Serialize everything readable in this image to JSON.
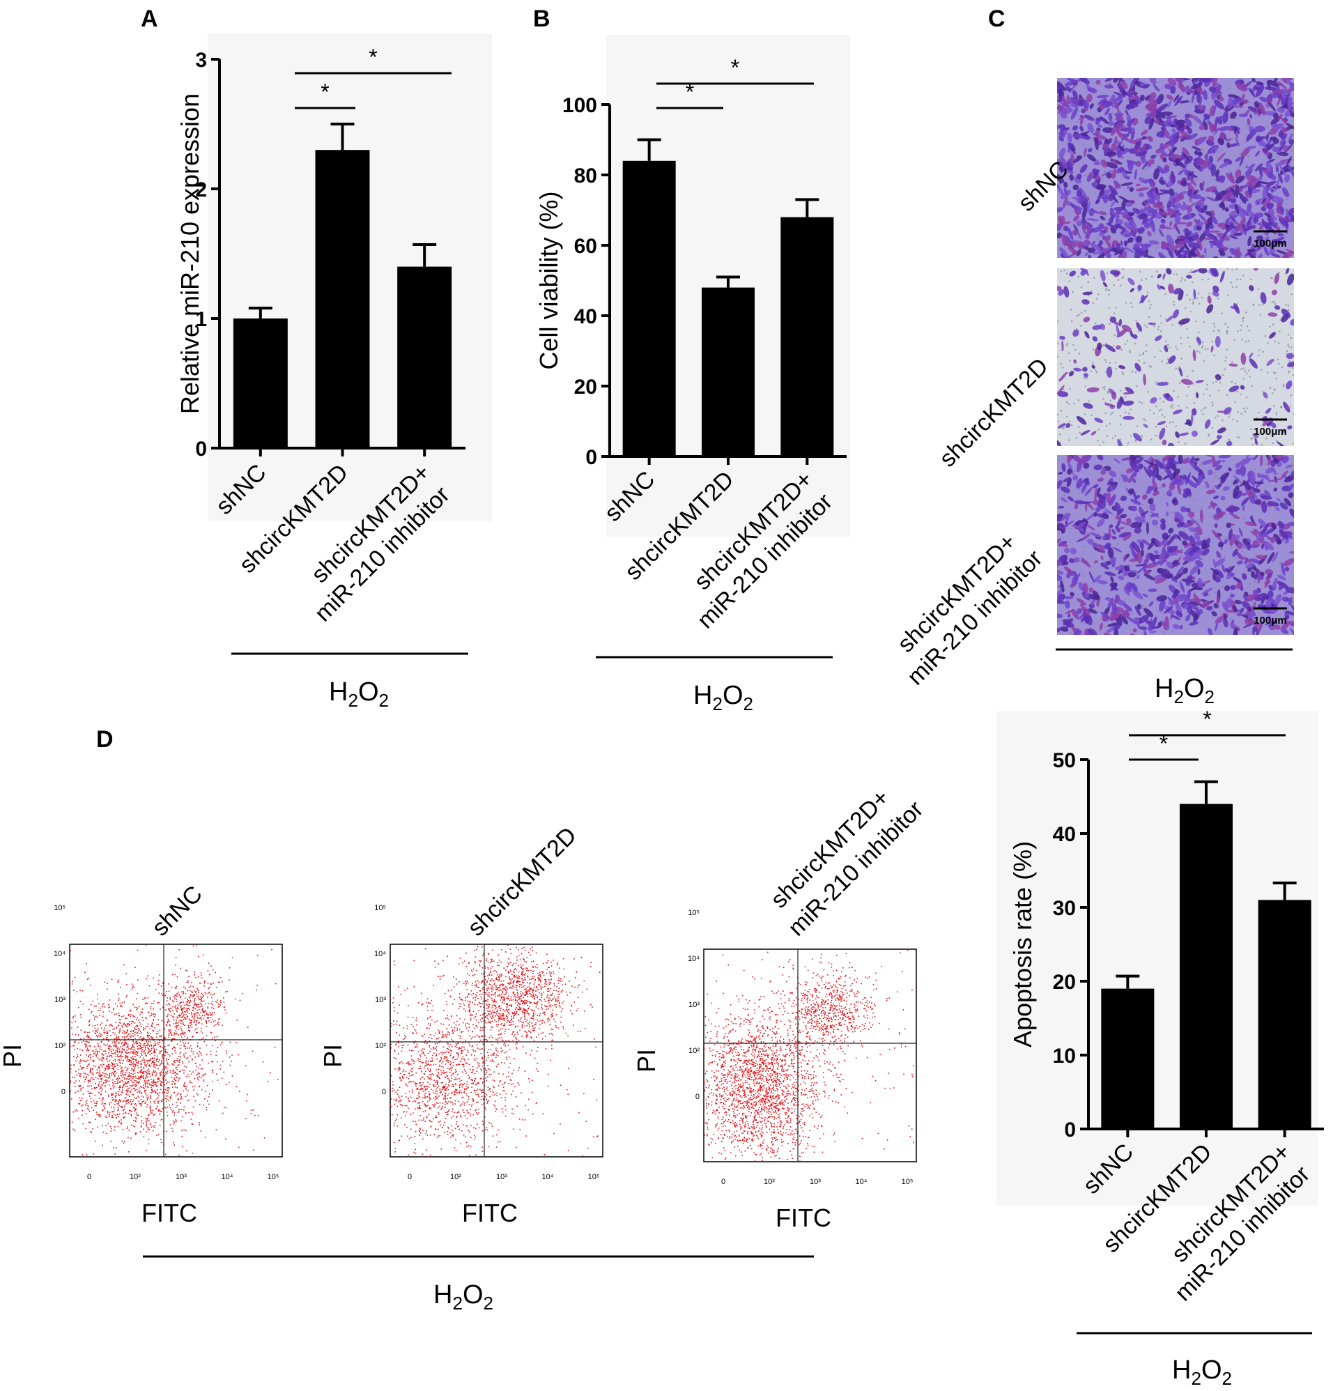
{
  "common": {
    "treatment": "H2O2",
    "treatment_main": "H",
    "treatment_sub": "2",
    "treatment_main2": "O",
    "treatment_sub2": "2"
  },
  "groups": {
    "g1": "shNC",
    "g2": "shcircKMT2D",
    "g3_line1": "shcircKMT2D+",
    "g3_line2": "miR-210 inhibitor"
  },
  "significance_mark": "*",
  "chart_data": [
    {
      "panel": "A",
      "type": "bar",
      "ylabel": "Relative miR-210 expression",
      "ylim": [
        0,
        3
      ],
      "yticks": [
        "0",
        "1",
        "2",
        "3"
      ],
      "categories": [
        "shNC",
        "shcircKMT2D",
        "shcircKMT2D+ miR-210 inhibitor"
      ],
      "values": [
        1.0,
        2.3,
        1.4
      ],
      "errors": [
        0.08,
        0.2,
        0.17
      ],
      "significance": [
        [
          "shNC",
          "shcircKMT2D",
          "*"
        ],
        [
          "shNC",
          "shcircKMT2D+ miR-210 inhibitor",
          "*"
        ]
      ]
    },
    {
      "panel": "B",
      "type": "bar",
      "ylabel": "Cell viability (%)",
      "ylim": [
        0,
        100
      ],
      "yticks": [
        "0",
        "20",
        "40",
        "60",
        "80",
        "100"
      ],
      "categories": [
        "shNC",
        "shcircKMT2D",
        "shcircKMT2D+ miR-210 inhibitor"
      ],
      "values": [
        84,
        48,
        68
      ],
      "errors": [
        6,
        3,
        5
      ],
      "significance": [
        [
          "shNC",
          "shcircKMT2D",
          "*"
        ],
        [
          "shNC",
          "shcircKMT2D+ miR-210 inhibitor",
          "*"
        ]
      ]
    },
    {
      "panel": "D",
      "type": "bar",
      "ylabel": "Apoptosis rate (%)",
      "ylim": [
        0,
        50
      ],
      "yticks": [
        "0",
        "10",
        "20",
        "30",
        "40",
        "50"
      ],
      "categories": [
        "shNC",
        "shcircKMT2D",
        "shcircKMT2D+ miR-210 inhibitor"
      ],
      "values": [
        19,
        44,
        31
      ],
      "errors": [
        1.7,
        3,
        2.3
      ],
      "significance": [
        [
          "shNC",
          "shcircKMT2D",
          "*"
        ],
        [
          "shNC",
          "shcircKMT2D+ miR-210 inhibitor",
          "*"
        ]
      ]
    }
  ],
  "panel_c": {
    "letter": "C",
    "scale_bar": "100μm",
    "images": [
      "shNC",
      "shcircKMT2D",
      "shcircKMT2D+ miR-210 inhibitor"
    ]
  },
  "panel_d_flow": {
    "letter": "D",
    "xlabel": "FITC",
    "ylabel": "PI",
    "xticks": [
      "0",
      "10²",
      "10³",
      "10⁴",
      "10⁵"
    ],
    "yticks": [
      "0",
      "10²",
      "10³",
      "10⁴",
      "10⁵"
    ],
    "plots": [
      "shNC",
      "shcircKMT2D",
      "shcircKMT2D+ miR-210 inhibitor"
    ],
    "dot_color": "#e8141a"
  },
  "colors": {
    "bar": "#000000",
    "stain": "#6a3fc4",
    "background_stain": "#d9dde6"
  }
}
